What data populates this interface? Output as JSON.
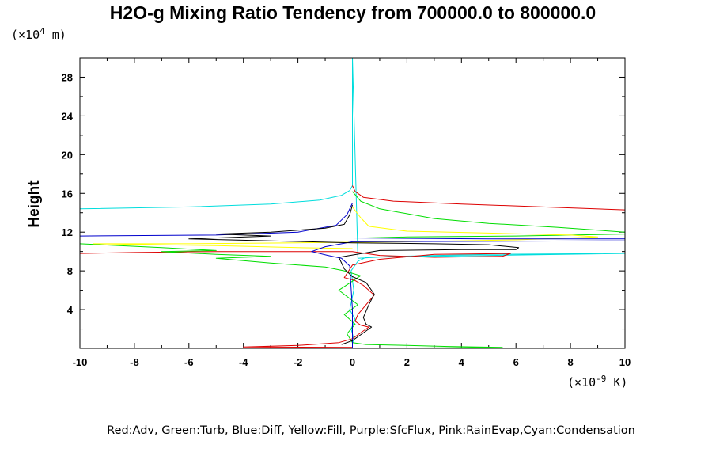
{
  "chart_data": {
    "type": "line",
    "title": "H2O-g Mixing Ratio Tendency from 700000.0 to 800000.0",
    "ylabel": "Height",
    "y_unit_label": "(×10",
    "y_unit_exp": "4",
    "y_unit_suffix": " m)",
    "x_unit_label": "(×10",
    "x_unit_exp": "-9",
    "x_unit_suffix": " K)",
    "xlim": [
      -10,
      10
    ],
    "ylim": [
      0,
      30
    ],
    "x_ticks": [
      -10,
      -8,
      -6,
      -4,
      -2,
      0,
      2,
      4,
      6,
      8,
      10
    ],
    "y_ticks": [
      4,
      8,
      12,
      16,
      20,
      24,
      28
    ],
    "legend_text": "Red:Adv, Green:Turb, Blue:Diff, Yellow:Fill, Purple:SfcFlux, Pink:RainEvap,Cyan:Condensation",
    "colors": {
      "adv": "#dd0000",
      "turb": "#00dd00",
      "diff": "#0000cc",
      "fill": "#ffff00",
      "sfcflux": "#a000c8",
      "rainevap": "#ff00ff",
      "condensation": "#00dddd",
      "total": "#000000"
    },
    "series": [
      {
        "key": "condensation",
        "color": "#00dddd",
        "x": [
          -10.0,
          -6.0,
          -3.0,
          -1.2,
          -0.4,
          -0.1,
          0,
          0,
          0.2,
          1.5,
          5.0,
          10.0,
          10.0,
          0.5,
          0.2,
          -0.05,
          0.05,
          -0.1,
          0.1,
          -0.05,
          0.05,
          0,
          0,
          0
        ],
        "y": [
          14.4,
          14.6,
          14.9,
          15.3,
          15.8,
          16.3,
          16.8,
          30.0,
          9.3,
          9.5,
          9.7,
          9.8,
          9.8,
          9.4,
          9.0,
          8.0,
          6.0,
          4.0,
          3.0,
          2.0,
          1.0,
          0.5,
          0.2,
          0.0
        ]
      },
      {
        "key": "adv",
        "color": "#dd0000",
        "x": [
          0.0,
          0.1,
          0.4,
          1.5,
          4.0,
          7.0,
          10.0
        ],
        "y": [
          16.8,
          16.2,
          15.6,
          15.2,
          14.9,
          14.6,
          14.3
        ]
      },
      {
        "key": "adv",
        "color": "#dd0000",
        "x": [
          -10.0,
          -8.0,
          -5.0,
          -2.0,
          0.0,
          1.0,
          3.0,
          5.5,
          5.8,
          3.0,
          1.0,
          0.0,
          -0.3,
          0.1,
          0.4,
          0.8,
          0.5,
          0.2,
          0.1,
          0.3,
          0.6,
          0.3,
          0.0,
          -0.5,
          -2.0,
          -4.0,
          0.0
        ],
        "y": [
          9.8,
          9.9,
          10.0,
          10.0,
          10.0,
          9.6,
          9.4,
          9.5,
          9.8,
          9.7,
          9.2,
          8.6,
          7.3,
          7.0,
          6.5,
          5.5,
          4.5,
          3.5,
          2.8,
          2.4,
          2.2,
          1.6,
          1.0,
          0.6,
          0.3,
          0.15,
          0.1
        ]
      },
      {
        "key": "turb",
        "color": "#00dd00",
        "x": [
          0.0,
          0.3,
          1.0,
          3.0,
          5.0,
          7.5,
          10.0,
          10.0,
          6.0,
          2.0,
          0.5
        ],
        "y": [
          16.2,
          15.2,
          14.4,
          13.4,
          12.9,
          12.5,
          12.0,
          11.8,
          11.6,
          11.5,
          11.4
        ]
      },
      {
        "key": "turb",
        "color": "#00dd00",
        "x": [
          -10.0,
          -7.0,
          -5.0,
          -7.0,
          -5.0,
          -3.0,
          -5.0,
          -3.0,
          -1.0,
          -0.3,
          0.3,
          -0.5,
          0.2,
          -0.3,
          0.1,
          -0.2,
          0.0,
          0.5,
          2.0,
          3.5,
          5.5,
          3.0,
          0.5
        ],
        "y": [
          10.8,
          10.4,
          10.1,
          10.0,
          9.7,
          9.5,
          9.3,
          8.8,
          8.4,
          8.0,
          7.5,
          6.0,
          4.5,
          3.5,
          2.5,
          1.5,
          0.6,
          0.4,
          0.3,
          0.2,
          0.1,
          0.05,
          0.0
        ]
      },
      {
        "key": "fill",
        "color": "#ffff00",
        "x": [
          0.0,
          0.3,
          0.6,
          2.0,
          5.0,
          8.0,
          9.0,
          6.0,
          2.0,
          -2.0,
          -6.0,
          -9.5,
          -5.0,
          -2.0,
          0.0
        ],
        "y": [
          14.6,
          13.5,
          12.6,
          12.1,
          11.9,
          11.7,
          11.5,
          11.2,
          11.0,
          10.9,
          10.8,
          10.8,
          10.6,
          10.4,
          10.3
        ]
      },
      {
        "key": "diff",
        "color": "#0000cc",
        "x": [
          0.0,
          -0.2,
          -0.6,
          -2.0,
          -5.0,
          -10.0,
          -10.0,
          -5.0,
          0.0,
          5.0,
          10.0,
          10.0,
          0.0,
          -1.0,
          -1.5,
          -0.9,
          -0.4,
          -0.1,
          0.0,
          0.0
        ],
        "y": [
          15.0,
          13.8,
          12.7,
          12.0,
          11.7,
          11.6,
          11.4,
          11.4,
          11.4,
          11.3,
          11.3,
          11.1,
          11.0,
          10.5,
          10.0,
          9.6,
          9.3,
          8.5,
          4.0,
          0.0
        ]
      },
      {
        "key": "total",
        "color": "#000000",
        "x": [
          0.0,
          -0.1,
          -0.3,
          -1.0,
          -3.0,
          -5.0,
          -3.0,
          -6.0,
          -3.0,
          0.0,
          3.0,
          5.0,
          6.1,
          6.0,
          4.0,
          1.0,
          -0.5,
          -0.3,
          0.0,
          0.5,
          0.8,
          0.6,
          0.4,
          0.5,
          0.7,
          0.3,
          0.0,
          -0.4
        ],
        "y": [
          14.8,
          13.8,
          12.8,
          12.4,
          12.0,
          11.8,
          11.6,
          11.3,
          11.1,
          10.9,
          10.8,
          10.7,
          10.4,
          10.2,
          10.2,
          10.1,
          9.4,
          8.2,
          7.4,
          6.8,
          5.6,
          4.5,
          3.2,
          2.5,
          2.2,
          1.4,
          0.8,
          0.4
        ]
      }
    ]
  }
}
